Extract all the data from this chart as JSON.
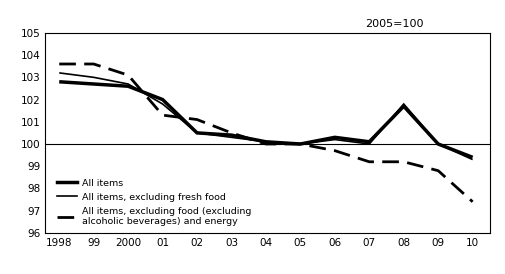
{
  "years": [
    1998,
    1999,
    2000,
    2001,
    2002,
    2003,
    2004,
    2005,
    2006,
    2007,
    2008,
    2009,
    2010
  ],
  "all_items": [
    102.8,
    102.7,
    102.6,
    102.0,
    100.5,
    100.4,
    100.1,
    100.0,
    100.3,
    100.1,
    101.7,
    100.0,
    99.4
  ],
  "excl_fresh_food": [
    103.2,
    103.0,
    102.7,
    101.8,
    100.5,
    100.3,
    100.1,
    100.0,
    100.2,
    100.0,
    101.8,
    100.0,
    99.3
  ],
  "excl_food_energy": [
    103.6,
    103.6,
    103.1,
    101.3,
    101.1,
    100.5,
    100.0,
    100.0,
    99.7,
    99.2,
    99.2,
    98.8,
    97.4
  ],
  "ylim": [
    96,
    105
  ],
  "yticks": [
    96,
    97,
    98,
    99,
    100,
    101,
    102,
    103,
    104,
    105
  ],
  "xlim_min": 1997.6,
  "xlim_max": 2010.5,
  "annotation": "2005=100",
  "legend_labels": [
    "All items",
    "All items, excluding fresh food",
    "All items, excluding food (excluding\nalcoholic beverages) and energy"
  ],
  "background_color": "#ffffff",
  "line_color": "#000000",
  "hline_y": 100,
  "xtick_labels": [
    "1998",
    "99",
    "2000",
    "01",
    "02",
    "03",
    "04",
    "05",
    "06",
    "07",
    "08",
    "09",
    "10"
  ]
}
